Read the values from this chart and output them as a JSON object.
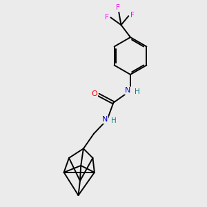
{
  "background_color": "#ebebeb",
  "bond_color": "#000000",
  "atom_colors": {
    "O": "#ff0000",
    "N": "#0000cd",
    "F": "#ff00ff",
    "H_teal": "#008080"
  },
  "figsize": [
    3.0,
    3.0
  ],
  "dpi": 100,
  "xlim": [
    0,
    10
  ],
  "ylim": [
    0,
    10
  ]
}
